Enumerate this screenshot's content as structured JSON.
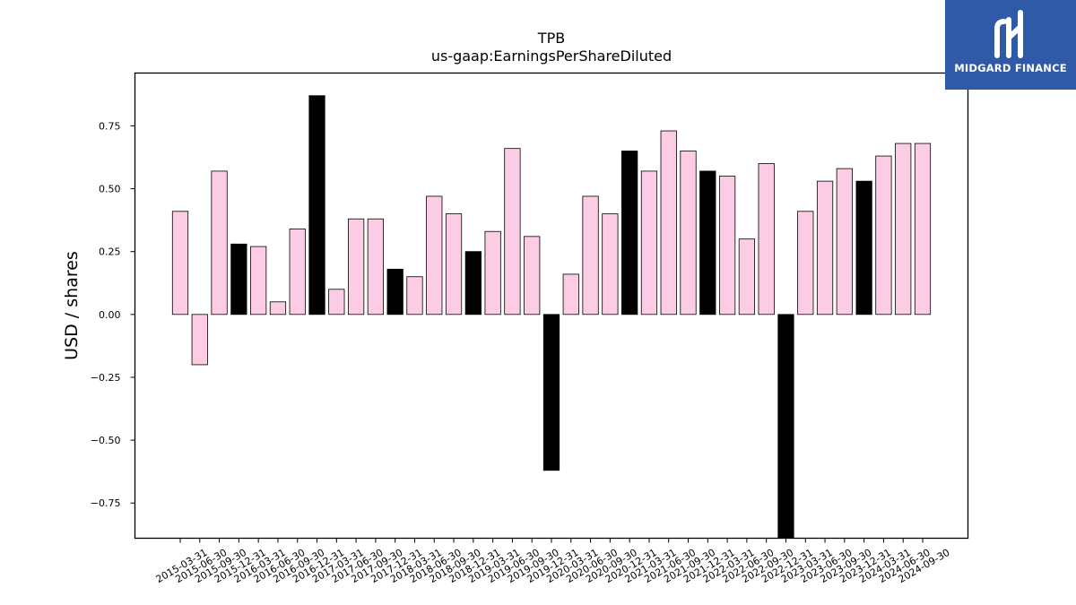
{
  "chart_data": {
    "type": "bar",
    "title": "TPB",
    "subtitle": "us-gaap:EarningsPerShareDiluted",
    "xlabel": "",
    "ylabel": "USD / shares",
    "ylim": [
      -0.89,
      0.96
    ],
    "yticks": [
      -0.75,
      -0.5,
      -0.25,
      0.0,
      0.25,
      0.5,
      0.75
    ],
    "ytick_labels": [
      "−0.75",
      "−0.50",
      "−0.25",
      "0.00",
      "0.25",
      "0.50",
      "0.75"
    ],
    "categories": [
      "2015-03-31",
      "2015-06-30",
      "2015-09-30",
      "2015-12-31",
      "2016-03-31",
      "2016-06-30",
      "2016-09-30",
      "2016-12-31",
      "2017-03-31",
      "2017-06-30",
      "2017-09-30",
      "2017-12-31",
      "2018-03-31",
      "2018-06-30",
      "2018-09-30",
      "2018-12-31",
      "2019-03-31",
      "2019-06-30",
      "2019-09-30",
      "2019-12-31",
      "2020-03-31",
      "2020-06-30",
      "2020-09-30",
      "2020-12-31",
      "2021-03-31",
      "2021-06-30",
      "2021-09-30",
      "2021-12-31",
      "2022-03-31",
      "2022-06-30",
      "2022-09-30",
      "2022-12-31",
      "2023-03-31",
      "2023-06-30",
      "2023-09-30",
      "2023-12-31",
      "2024-03-31",
      "2024-06-30",
      "2024-09-30"
    ],
    "values": [
      0.41,
      -0.2,
      0.57,
      0.28,
      0.27,
      0.05,
      0.34,
      0.87,
      0.1,
      0.38,
      0.38,
      0.18,
      0.15,
      0.47,
      0.4,
      0.25,
      0.33,
      0.66,
      0.31,
      -0.62,
      0.16,
      0.47,
      0.4,
      0.65,
      0.57,
      0.73,
      0.65,
      0.57,
      0.55,
      0.3,
      0.6,
      -0.89,
      0.41,
      0.53,
      0.58,
      0.53,
      0.63,
      0.68,
      0.68
    ],
    "highlight": [
      false,
      false,
      false,
      true,
      false,
      false,
      false,
      true,
      false,
      false,
      false,
      true,
      false,
      false,
      false,
      true,
      false,
      false,
      false,
      true,
      false,
      false,
      false,
      true,
      false,
      false,
      false,
      true,
      false,
      false,
      false,
      true,
      false,
      false,
      false,
      true,
      false,
      false,
      false
    ],
    "colors": {
      "bar": "#fbcce4",
      "highlight_bar": "#000000",
      "edge": "#000000"
    },
    "grid": false,
    "legend": "none"
  },
  "logo": {
    "name": "MIDGARD FINANCE",
    "icon": "midgard-logo-icon",
    "background": "#2e5aa8"
  }
}
